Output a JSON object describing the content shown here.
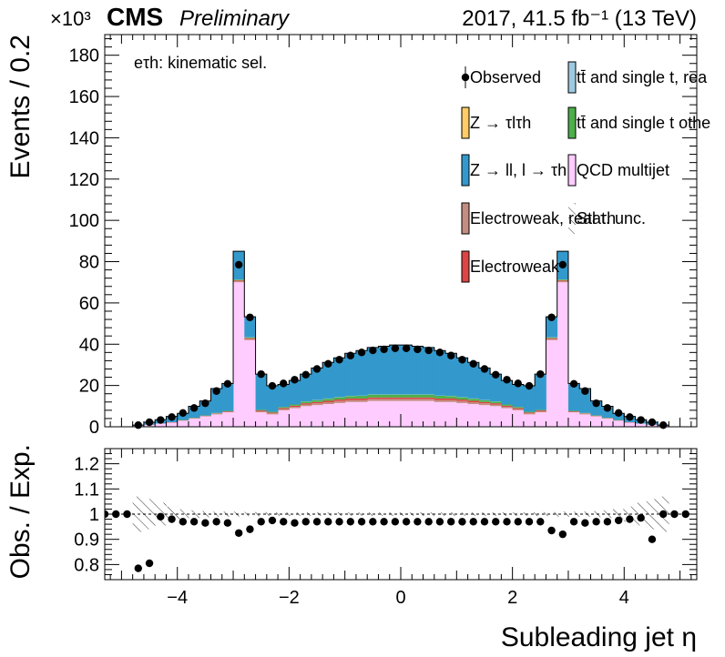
{
  "header": {
    "exponent": "×10³",
    "cms": "CMS",
    "preliminary": "Preliminary",
    "lumi": "2017, 41.5 fb⁻¹ (13 TeV)"
  },
  "channel_label": "eτh: kinematic sel.",
  "legend": [
    {
      "key": "observed",
      "label": "Observed",
      "style": "marker"
    },
    {
      "key": "ttbar_real",
      "label": "tt̄ and single t, rea",
      "color": "#9ecae1"
    },
    {
      "key": "ztautau",
      "label": "Z → τlτh",
      "color": "#ffcc66"
    },
    {
      "key": "ttbar_other",
      "label": "tt̄ and single t othe",
      "color": "#4daf4a"
    },
    {
      "key": "zll",
      "label": "Z → ll, l → τh",
      "color": "#3399cc"
    },
    {
      "key": "qcd",
      "label": "QCD multijet",
      "color": "#ffccff"
    },
    {
      "key": "ew_real",
      "label": "Electroweak, real τh",
      "color": "#c48d81"
    },
    {
      "key": "stat_unc",
      "label": "Stat. unc.",
      "style": "hatch"
    },
    {
      "key": "ew_other",
      "label": "Electroweak",
      "color": "#dd4444"
    }
  ],
  "chart_data": [
    {
      "type": "bar",
      "stacked": true,
      "xlabel": "Subleading jet  η",
      "ylabel": "Events / 0.2",
      "xlim": [
        -5.3,
        5.3
      ],
      "ylim": [
        0,
        190
      ],
      "y_unit_multiplier": "×10³",
      "xticks": [
        -4,
        -2,
        0,
        2,
        4
      ],
      "yticks": [
        0,
        20,
        40,
        60,
        80,
        100,
        120,
        140,
        160,
        180
      ],
      "bin_width": 0.2,
      "x_bin_centers": [
        -4.7,
        -4.5,
        -4.3,
        -4.1,
        -3.9,
        -3.7,
        -3.5,
        -3.3,
        -3.1,
        -2.9,
        -2.7,
        -2.5,
        -2.3,
        -2.1,
        -1.9,
        -1.7,
        -1.5,
        -1.3,
        -1.1,
        -0.9,
        -0.7,
        -0.5,
        -0.3,
        -0.1,
        0.1,
        0.3,
        0.5,
        0.7,
        0.9,
        1.1,
        1.3,
        1.5,
        1.7,
        1.9,
        2.1,
        2.3,
        2.5,
        2.7,
        2.9,
        3.1,
        3.3,
        3.5,
        3.7,
        3.9,
        4.1,
        4.3,
        4.5,
        4.7
      ],
      "series": [
        {
          "name": "QCD multijet",
          "color": "#ffccff",
          "values": [
            0.5,
            1,
            1.5,
            2,
            3,
            4,
            5,
            6,
            7,
            70,
            42,
            7,
            6,
            8,
            9,
            10,
            10.5,
            11,
            11.5,
            12,
            12,
            12.5,
            12.5,
            12.5,
            12.5,
            12.5,
            12.5,
            12,
            12,
            11.5,
            11,
            10.5,
            10,
            9,
            8,
            6,
            7,
            42,
            70,
            7,
            6,
            5,
            4,
            3,
            2,
            1.5,
            1,
            0.5
          ]
        },
        {
          "name": "Electroweak, real τh",
          "color": "#c48d81",
          "values": [
            0,
            0,
            0.1,
            0.1,
            0.1,
            0.2,
            0.2,
            0.3,
            0.3,
            0.5,
            0.5,
            0.5,
            0.5,
            0.6,
            0.7,
            0.8,
            0.9,
            0.9,
            1,
            1,
            1,
            1,
            1,
            1,
            1,
            1,
            1,
            1,
            1,
            1,
            0.9,
            0.9,
            0.8,
            0.7,
            0.6,
            0.5,
            0.5,
            0.5,
            0.5,
            0.3,
            0.3,
            0.2,
            0.2,
            0.1,
            0.1,
            0.1,
            0,
            0
          ]
        },
        {
          "name": "Electroweak",
          "color": "#dd4444",
          "values": [
            0,
            0,
            0,
            0.1,
            0.1,
            0.1,
            0.2,
            0.2,
            0.2,
            0.4,
            0.4,
            0.4,
            0.4,
            0.5,
            0.5,
            0.6,
            0.6,
            0.7,
            0.7,
            0.7,
            0.7,
            0.7,
            0.7,
            0.7,
            0.7,
            0.7,
            0.7,
            0.7,
            0.7,
            0.7,
            0.7,
            0.6,
            0.6,
            0.5,
            0.5,
            0.4,
            0.4,
            0.4,
            0.4,
            0.2,
            0.2,
            0.2,
            0.1,
            0.1,
            0.1,
            0,
            0,
            0
          ]
        },
        {
          "name": "tt̄ and single t othe",
          "color": "#4daf4a",
          "values": [
            0,
            0,
            0,
            0,
            0.1,
            0.1,
            0.1,
            0.2,
            0.2,
            0.3,
            0.3,
            0.3,
            0.4,
            0.5,
            0.6,
            0.8,
            0.9,
            1,
            1.1,
            1.2,
            1.3,
            1.4,
            1.4,
            1.4,
            1.4,
            1.4,
            1.4,
            1.3,
            1.2,
            1.1,
            1,
            0.9,
            0.8,
            0.6,
            0.5,
            0.4,
            0.3,
            0.3,
            0.3,
            0.2,
            0.2,
            0.1,
            0.1,
            0.1,
            0,
            0,
            0,
            0
          ]
        },
        {
          "name": "tt̄ and single t, rea",
          "color": "#9ecae1",
          "values": [
            0,
            0,
            0,
            0,
            0,
            0,
            0,
            0,
            0,
            0,
            0,
            0,
            0,
            0,
            0,
            0.1,
            0.1,
            0.1,
            0.1,
            0.1,
            0.1,
            0.1,
            0.1,
            0.1,
            0.1,
            0.1,
            0.1,
            0.1,
            0.1,
            0.1,
            0.1,
            0.1,
            0.1,
            0,
            0,
            0,
            0,
            0,
            0,
            0,
            0,
            0,
            0,
            0,
            0,
            0,
            0,
            0
          ]
        },
        {
          "name": "Z → τlτh",
          "color": "#ffcc66",
          "values": [
            0,
            0,
            0,
            0,
            0,
            0,
            0,
            0,
            0,
            0.1,
            0.1,
            0,
            0,
            0,
            0,
            0,
            0,
            0,
            0,
            0,
            0,
            0,
            0,
            0,
            0,
            0,
            0,
            0,
            0,
            0,
            0,
            0,
            0,
            0,
            0,
            0,
            0,
            0.1,
            0.1,
            0,
            0,
            0,
            0,
            0,
            0,
            0,
            0,
            0
          ]
        },
        {
          "name": "Z → ll, l → τh",
          "color": "#3399cc",
          "values": [
            0.3,
            1.2,
            1.8,
            2.8,
            3.2,
            5.5,
            7,
            11.8,
            13.3,
            13.7,
            10,
            17.3,
            12.6,
            10.9,
            11.6,
            13.2,
            15.5,
            17.5,
            19,
            20.6,
            21.8,
            22.7,
            23.3,
            23.9,
            23.9,
            23.3,
            22.7,
            21.8,
            20.6,
            19,
            17.5,
            15.5,
            13.2,
            11.6,
            10.9,
            12.6,
            17.3,
            10,
            13.7,
            13.3,
            11.8,
            7,
            5.5,
            3.2,
            2.8,
            1.8,
            1.2,
            0.3
          ]
        }
      ],
      "observed": [
        0.8,
        2.2,
        3.3,
        4.7,
        6.7,
        9.1,
        11.4,
        17.3,
        20.8,
        78.5,
        53,
        25.5,
        19.8,
        21,
        22.8,
        25.2,
        28,
        30.5,
        32.5,
        34.5,
        36,
        37,
        37.5,
        38,
        38,
        37.5,
        37,
        36,
        34.5,
        32.5,
        30.5,
        28,
        25.2,
        22.8,
        21,
        19.8,
        25.5,
        53,
        78.5,
        20.8,
        17.3,
        11.4,
        9.1,
        6.7,
        4.7,
        3.3,
        2.2,
        0.8
      ]
    },
    {
      "type": "scatter",
      "xlabel": "Subleading jet  η",
      "ylabel": "Obs. / Exp.",
      "xlim": [
        -5.3,
        5.3
      ],
      "ylim": [
        0.74,
        1.26
      ],
      "yticks": [
        0.8,
        0.9,
        1,
        1.1,
        1.2
      ],
      "xticks": [
        -4,
        -2,
        0,
        2,
        4
      ],
      "x": [
        -5.3,
        -5.1,
        -4.9,
        -4.7,
        -4.5,
        -4.3,
        -4.1,
        -3.9,
        -3.7,
        -3.5,
        -3.3,
        -3.1,
        -2.9,
        -2.7,
        -2.5,
        -2.3,
        -2.1,
        -1.9,
        -1.7,
        -1.5,
        -1.3,
        -1.1,
        -0.9,
        -0.7,
        -0.5,
        -0.3,
        -0.1,
        0.1,
        0.3,
        0.5,
        0.7,
        0.9,
        1.1,
        1.3,
        1.5,
        1.7,
        1.9,
        2.1,
        2.3,
        2.5,
        2.7,
        2.9,
        3.1,
        3.3,
        3.5,
        3.7,
        3.9,
        4.1,
        4.3,
        4.5,
        4.7,
        4.9,
        5.1
      ],
      "y": [
        1,
        1,
        1,
        0.785,
        0.805,
        0.99,
        0.98,
        0.97,
        0.97,
        0.965,
        0.97,
        0.965,
        0.925,
        0.94,
        0.97,
        0.975,
        0.97,
        0.965,
        0.97,
        0.97,
        0.97,
        0.97,
        0.97,
        0.97,
        0.97,
        0.97,
        0.97,
        0.97,
        0.97,
        0.97,
        0.97,
        0.97,
        0.97,
        0.97,
        0.97,
        0.97,
        0.97,
        0.97,
        0.97,
        0.97,
        0.935,
        0.92,
        0.97,
        0.965,
        0.97,
        0.97,
        0.975,
        0.98,
        0.985,
        0.9,
        1,
        1,
        1
      ],
      "err": [
        0,
        0,
        0,
        0.015,
        0.012,
        0.01,
        0.008,
        0.008,
        0.006,
        0.006,
        0.005,
        0.005,
        0.005,
        0.005,
        0.005,
        0.005,
        0.005,
        0.004,
        0.004,
        0.004,
        0.004,
        0.004,
        0.004,
        0.004,
        0.004,
        0.004,
        0.004,
        0.004,
        0.004,
        0.004,
        0.004,
        0.004,
        0.004,
        0.004,
        0.004,
        0.004,
        0.004,
        0.005,
        0.005,
        0.005,
        0.005,
        0.005,
        0.005,
        0.005,
        0.006,
        0.006,
        0.008,
        0.008,
        0.01,
        0.012,
        0.015,
        0,
        0
      ],
      "stat_unc_band": [
        0.07,
        0.06,
        0.045,
        0.03,
        0.02,
        0.015,
        0.012,
        0.01,
        0.01,
        0.01,
        0.008,
        0.008,
        0.007,
        0.007,
        0.007,
        0.007,
        0.007,
        0.007,
        0.007,
        0.007,
        0.007,
        0.007,
        0.007,
        0.007,
        0.007,
        0.007,
        0.007,
        0.007,
        0.007,
        0.007,
        0.007,
        0.007,
        0.007,
        0.007,
        0.007,
        0.007,
        0.008,
        0.008,
        0.01,
        0.01,
        0.01,
        0.012,
        0.015,
        0.02,
        0.03,
        0.045,
        0.06,
        0.07
      ]
    }
  ]
}
